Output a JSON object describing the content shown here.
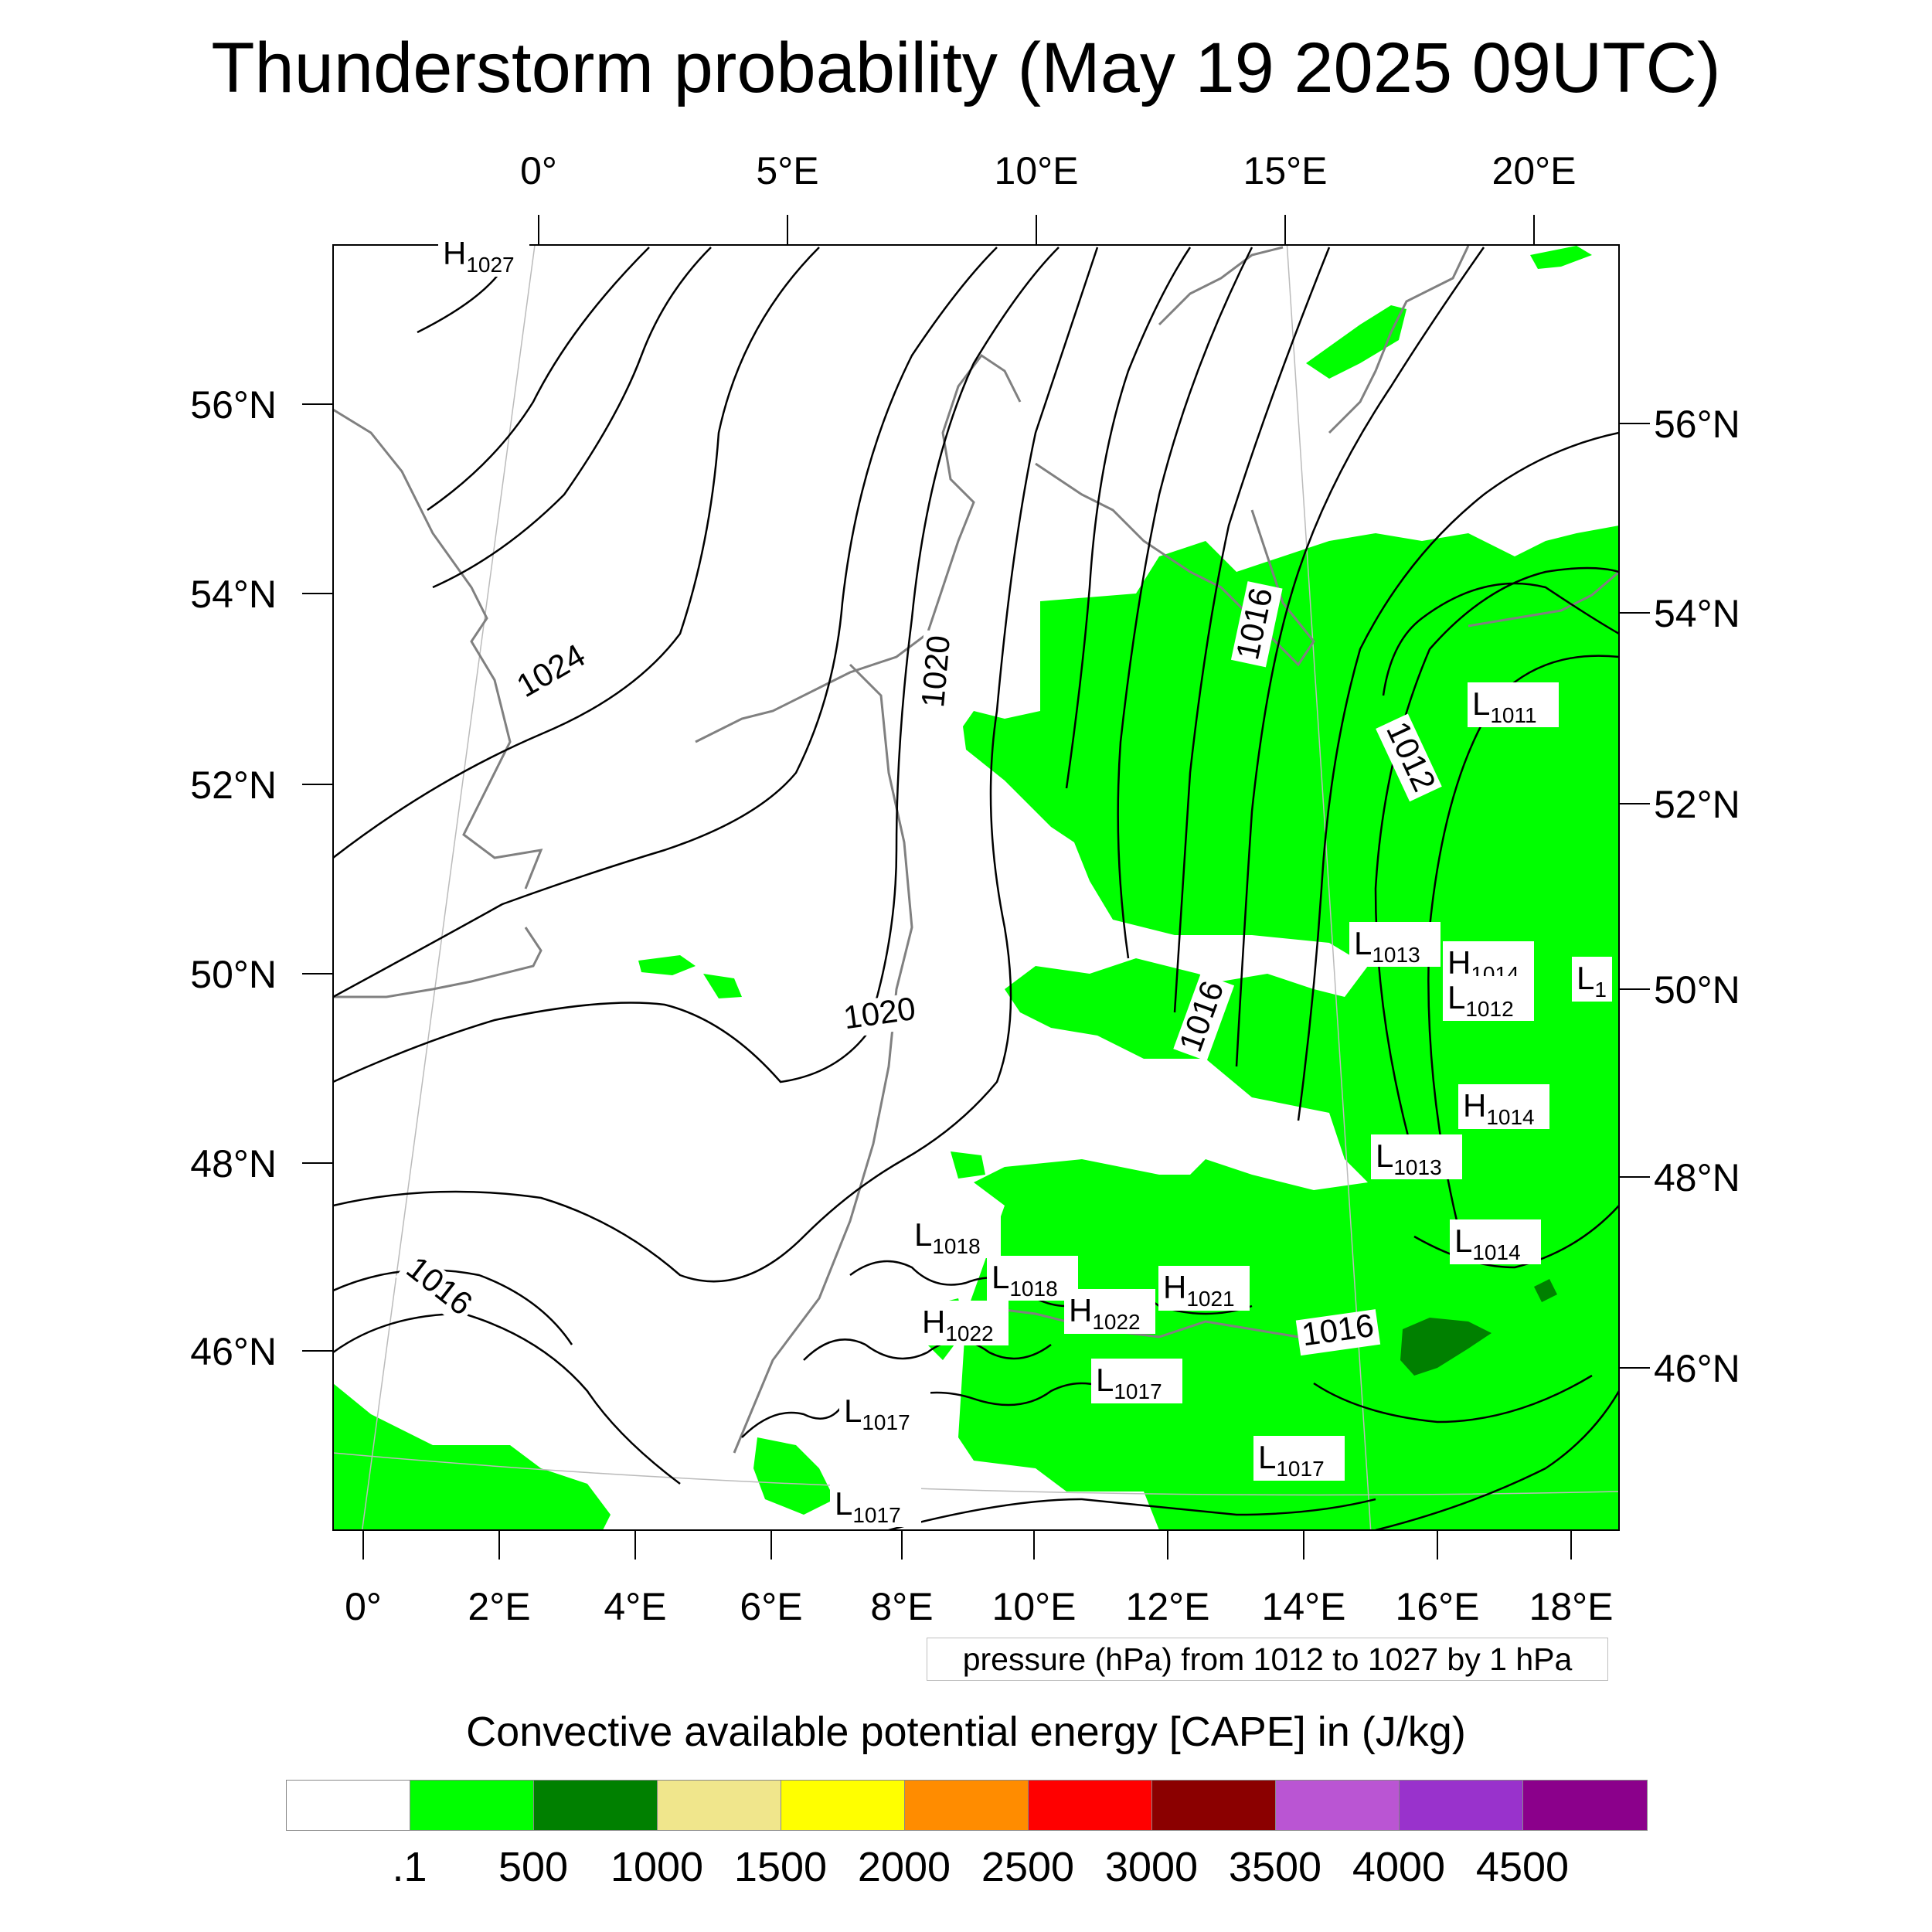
{
  "title": "Thunderstorm probability (May 19 2025 09UTC)",
  "top_lon_labels": [
    "0°",
    "5°E",
    "10°E",
    "15°E",
    "20°E"
  ],
  "bottom_lon_labels": [
    "0°",
    "2°E",
    "4°E",
    "6°E",
    "8°E",
    "10°E",
    "12°E",
    "14°E",
    "16°E",
    "18°E"
  ],
  "left_lat_labels": [
    "56°N",
    "54°N",
    "52°N",
    "50°N",
    "48°N",
    "46°N"
  ],
  "right_lat_labels": [
    "56°N",
    "54°N",
    "52°N",
    "50°N",
    "48°N",
    "46°N"
  ],
  "isobar_labels": [
    "1024",
    "1020",
    "1020",
    "1016",
    "1016",
    "1016",
    "1012",
    "1016"
  ],
  "pressure_centers": [
    {
      "kind": "H",
      "value": "1027"
    },
    {
      "kind": "L",
      "value": "1011"
    },
    {
      "kind": "L",
      "value": "1013"
    },
    {
      "kind": "H",
      "value": "1014"
    },
    {
      "kind": "L",
      "value": "1012"
    },
    {
      "kind": "L",
      "value": "1"
    },
    {
      "kind": "H",
      "value": "1014"
    },
    {
      "kind": "L",
      "value": "1013"
    },
    {
      "kind": "L",
      "value": "1014"
    },
    {
      "kind": "L",
      "value": "1018"
    },
    {
      "kind": "L",
      "value": "1018"
    },
    {
      "kind": "H",
      "value": "1021"
    },
    {
      "kind": "H",
      "value": "1022"
    },
    {
      "kind": "H",
      "value": "1022"
    },
    {
      "kind": "L",
      "value": "1017"
    },
    {
      "kind": "L",
      "value": "1017"
    },
    {
      "kind": "L",
      "value": "1017"
    },
    {
      "kind": "L",
      "value": "1017"
    }
  ],
  "pressure_note": "pressure (hPa) from 1012 to 1027 by 1 hPa",
  "colorbar": {
    "title": "Convective available potential energy [CAPE] in (J/kg)",
    "colors": [
      "#ffffff",
      "#00ff00",
      "#008000",
      "#f0e68c",
      "#ffff00",
      "#ff8c00",
      "#ff0000",
      "#8b0000",
      "#ba55d3",
      "#9932cc",
      "#8b008b"
    ],
    "tick_labels": [
      ".1",
      "500",
      "1000",
      "1500",
      "2000",
      "2500",
      "3000",
      "3500",
      "4000",
      "4500"
    ]
  }
}
